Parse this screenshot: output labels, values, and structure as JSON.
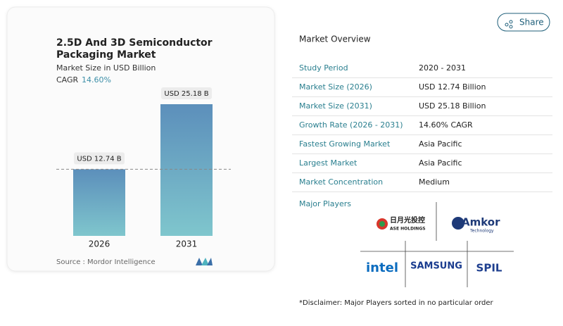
{
  "chart_data": {
    "type": "bar",
    "title": "2.5D And 3D Semiconductor Packaging Market",
    "subtitle": "Market Size in USD Billion",
    "cagr_label": "CAGR",
    "cagr_value": "14.60%",
    "categories": [
      "2026",
      "2031"
    ],
    "values": [
      12.74,
      25.18
    ],
    "value_labels": [
      "USD 12.74 B",
      "USD 25.18 B"
    ],
    "source_label": "Source :",
    "source": "Mordor Intelligence"
  },
  "share": "Share",
  "overview": {
    "title": "Market Overview",
    "rows": [
      [
        "Study Period",
        "2020 - 2031"
      ],
      [
        "Market Size (2026)",
        "USD 12.74 Billion"
      ],
      [
        "Market Size (2031)",
        "USD 25.18 Billion"
      ],
      [
        "Growth Rate (2026 - 2031)",
        "14.60% CAGR"
      ],
      [
        "Fastest Growing Market",
        "Asia Pacific"
      ],
      [
        "Largest Market",
        "Asia Pacific"
      ],
      [
        "Market Concentration",
        "Medium"
      ]
    ]
  },
  "players": {
    "title": "Major Players",
    "logos": [
      "日月光投控",
      "ASE HOLDINGS",
      "Amkor",
      "Technology",
      "intel",
      "SAMSUNG",
      "SPIL"
    ]
  },
  "disclaimer": "*Disclaimer: Major Players sorted in no particular order"
}
